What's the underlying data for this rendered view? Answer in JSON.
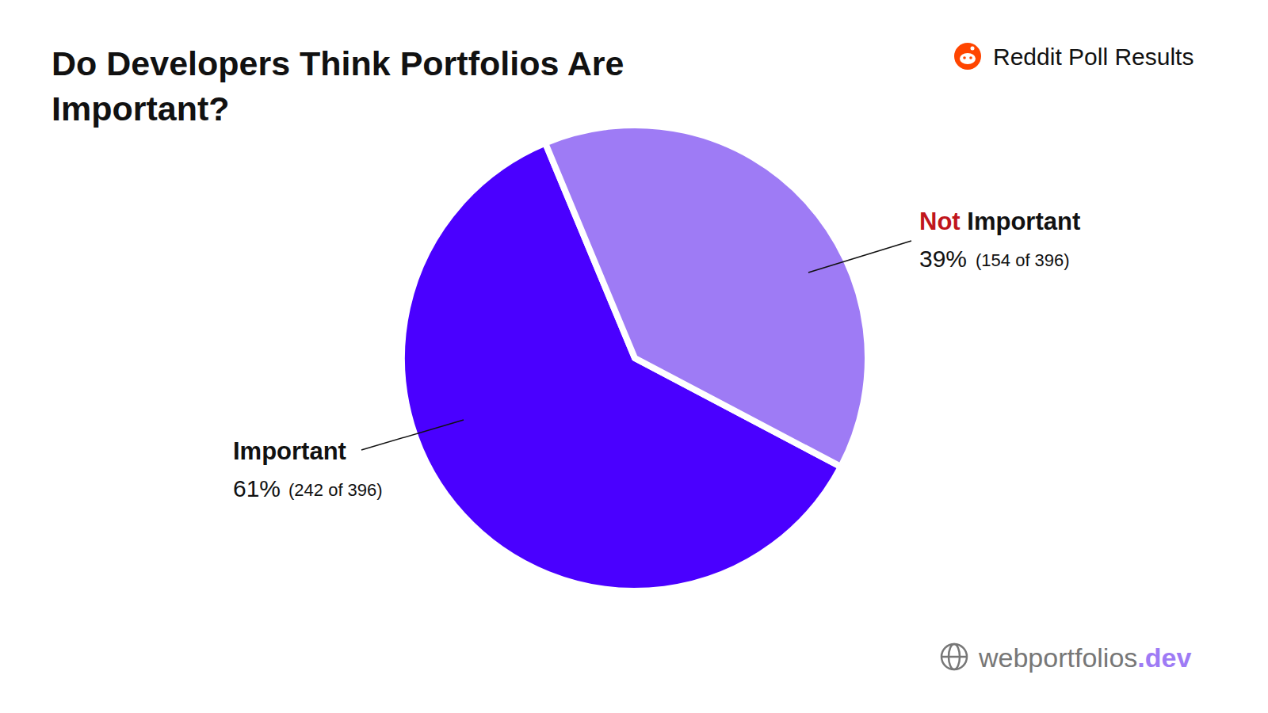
{
  "chart_data": {
    "type": "pie",
    "title": "Do Developers Think Portfolios Are Important?",
    "annotation": "Reddit Poll Results",
    "source": "webportfolios.dev",
    "categories": [
      "Important",
      "Not Important"
    ],
    "values": [
      61,
      39
    ],
    "value_labels": [
      "61%",
      "39%"
    ],
    "count_labels": [
      "(242 of 396)",
      "(154 of 396)"
    ],
    "colors": [
      "#4a00ff",
      "#9e7bf5"
    ],
    "data_labels": true
  }
}
